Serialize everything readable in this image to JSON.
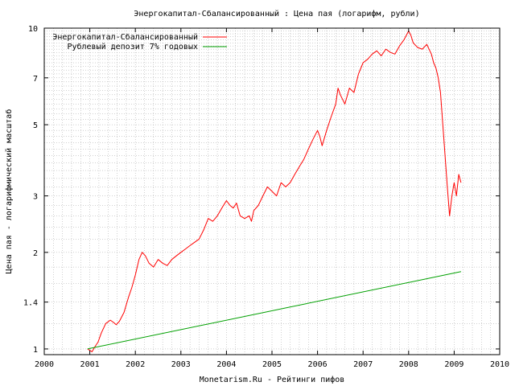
{
  "chart_data": {
    "type": "line",
    "title": "Энергокапитал-Сбалансированный : Цена пая (логарифм, рубли)",
    "xlabel": "Monetarism.Ru - Рейтинги пифов",
    "ylabel": "Цена пая - логарифмический масштаб",
    "x_scale": "linear",
    "y_scale": "log",
    "xlim": [
      2000,
      2010
    ],
    "ylim": [
      0.96,
      10
    ],
    "x_ticks": [
      2000,
      2001,
      2002,
      2003,
      2004,
      2005,
      2006,
      2007,
      2008,
      2009,
      2010
    ],
    "y_ticks": [
      1,
      1.4,
      2,
      3,
      5,
      7,
      10
    ],
    "grid": true,
    "legend_position": "top-left",
    "series": [
      {
        "name": "Энергокапитал-Сбалансированный",
        "color": "#ff0000",
        "x": [
          2000.95,
          2001.05,
          2001.12,
          2001.18,
          2001.25,
          2001.35,
          2001.45,
          2001.52,
          2001.58,
          2001.65,
          2001.75,
          2001.85,
          2001.92,
          2002.0,
          2002.08,
          2002.15,
          2002.22,
          2002.3,
          2002.4,
          2002.5,
          2002.6,
          2002.7,
          2002.8,
          2002.9,
          2003.0,
          2003.1,
          2003.2,
          2003.3,
          2003.4,
          2003.5,
          2003.6,
          2003.7,
          2003.8,
          2003.9,
          2004.0,
          2004.08,
          2004.15,
          2004.22,
          2004.3,
          2004.4,
          2004.5,
          2004.55,
          2004.6,
          2004.7,
          2004.8,
          2004.9,
          2005.0,
          2005.1,
          2005.2,
          2005.3,
          2005.4,
          2005.5,
          2005.6,
          2005.7,
          2005.8,
          2005.9,
          2006.0,
          2006.05,
          2006.1,
          2006.2,
          2006.3,
          2006.4,
          2006.45,
          2006.5,
          2006.6,
          2006.7,
          2006.8,
          2006.9,
          2007.0,
          2007.1,
          2007.2,
          2007.3,
          2007.4,
          2007.5,
          2007.6,
          2007.7,
          2007.8,
          2007.9,
          2008.0,
          2008.05,
          2008.1,
          2008.2,
          2008.3,
          2008.4,
          2008.5,
          2008.55,
          2008.6,
          2008.65,
          2008.7,
          2008.75,
          2008.8,
          2008.85,
          2008.9,
          2008.95,
          2009.0,
          2009.05,
          2009.1,
          2009.15
        ],
        "values": [
          1.0,
          0.98,
          1.02,
          1.05,
          1.12,
          1.2,
          1.23,
          1.21,
          1.19,
          1.22,
          1.3,
          1.45,
          1.55,
          1.7,
          1.9,
          2.0,
          1.95,
          1.85,
          1.8,
          1.9,
          1.85,
          1.82,
          1.9,
          1.95,
          2.0,
          2.05,
          2.1,
          2.15,
          2.2,
          2.35,
          2.55,
          2.5,
          2.6,
          2.75,
          2.9,
          2.8,
          2.75,
          2.85,
          2.6,
          2.55,
          2.6,
          2.5,
          2.7,
          2.8,
          3.0,
          3.2,
          3.1,
          3.0,
          3.3,
          3.2,
          3.3,
          3.5,
          3.7,
          3.9,
          4.2,
          4.5,
          4.8,
          4.6,
          4.3,
          4.8,
          5.3,
          5.8,
          6.5,
          6.2,
          5.8,
          6.5,
          6.3,
          7.2,
          7.8,
          8.0,
          8.3,
          8.5,
          8.2,
          8.6,
          8.4,
          8.3,
          8.8,
          9.2,
          9.8,
          9.5,
          9.0,
          8.7,
          8.6,
          8.9,
          8.3,
          7.8,
          7.5,
          7.0,
          6.3,
          5.0,
          4.0,
          3.2,
          2.6,
          3.0,
          3.3,
          3.0,
          3.5,
          3.3
        ]
      },
      {
        "name": "Рублевый депозит 7% годовых",
        "color": "#00a000",
        "x": [
          2000.95,
          2009.15
        ],
        "values": [
          1.0,
          1.742
        ]
      }
    ]
  }
}
